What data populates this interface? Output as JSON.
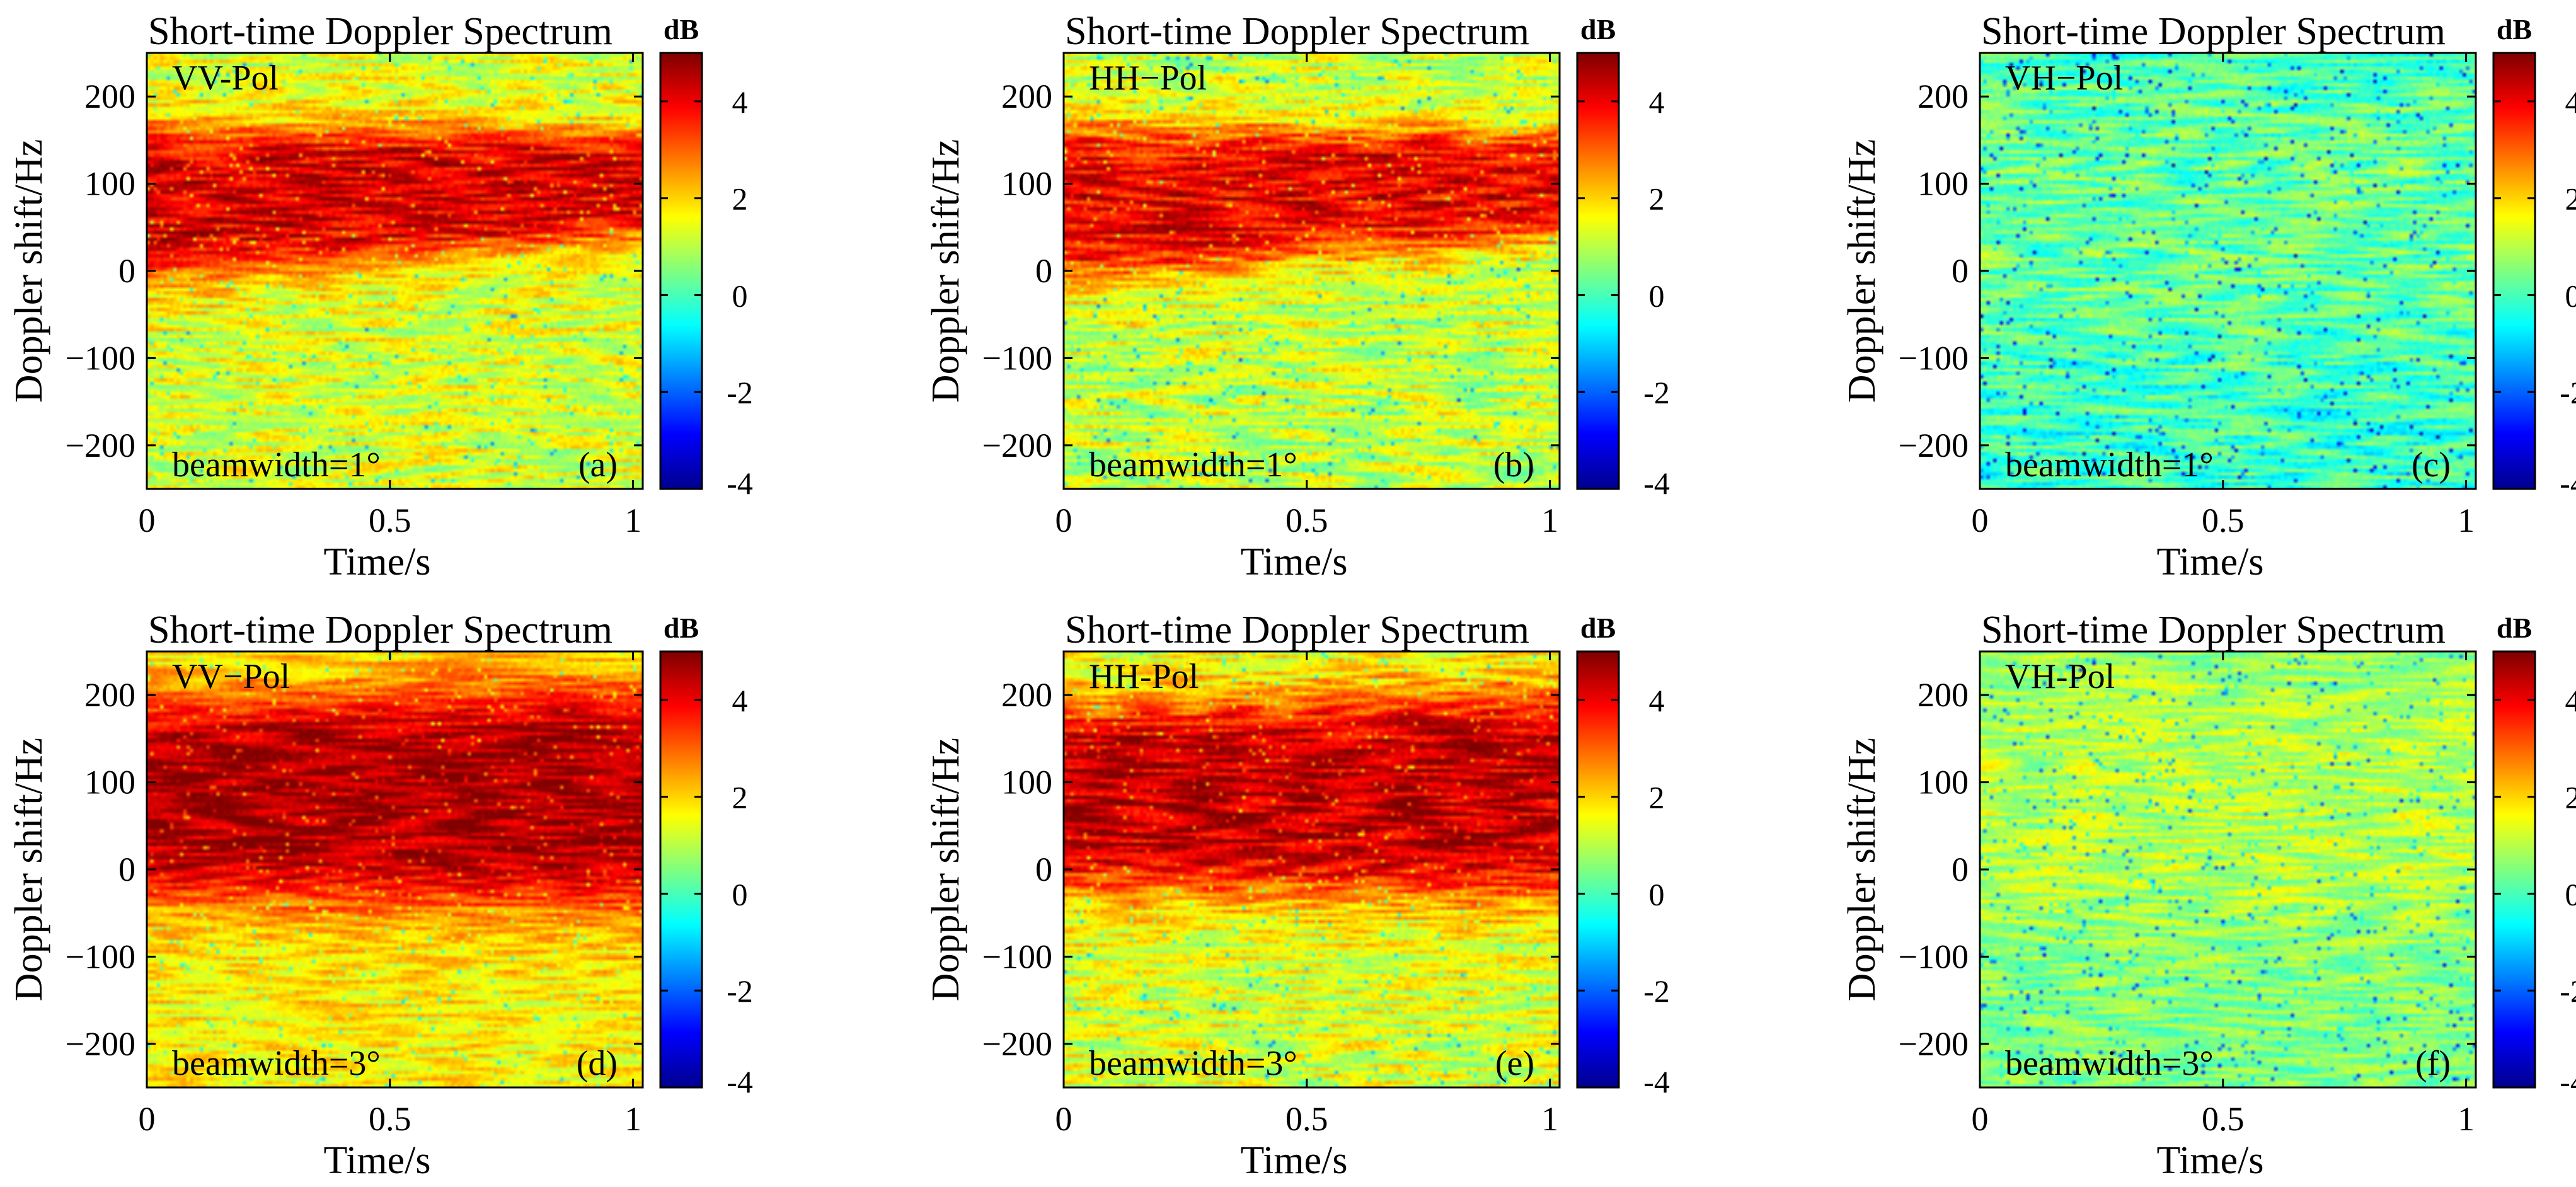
{
  "figure": {
    "colormap_name": "jet",
    "colormap": [
      "#00008f",
      "#0000ff",
      "#0080ff",
      "#00ffff",
      "#80ff80",
      "#ffff00",
      "#ff8000",
      "#ff0000",
      "#800000"
    ]
  },
  "chart_data": [
    {
      "type": "heatmap",
      "id": "a",
      "title": "Short-time Doppler Spectrum",
      "xlabel": "Time/s",
      "ylabel": "Doppler shift/Hz",
      "xlim": [
        0,
        1.02
      ],
      "ylim": [
        -250,
        250
      ],
      "xticks": [
        0,
        0.5,
        1
      ],
      "xtick_labels": [
        "0",
        "0.5",
        "1"
      ],
      "yticks": [
        200,
        100,
        0,
        -100,
        -200
      ],
      "ytick_labels": [
        "200",
        "100",
        "0",
        "−100",
        "−200"
      ],
      "colorbar": {
        "unit": "dB",
        "limits": [
          -4,
          5
        ],
        "ticks": [
          4,
          2,
          0,
          -2,
          -4
        ],
        "tick_labels": [
          "4",
          "2",
          "0",
          "-2",
          "-4"
        ]
      },
      "pol_label": "VV-Pol",
      "beam_label": "beamwidth=1°",
      "panel_label": "(a)",
      "spectrum": {
        "peak_dB": 4.2,
        "background_dB": 1.3,
        "hot_band_start": [
          -10,
          165
        ],
        "hot_band_end": [
          40,
          160
        ],
        "noise_dB": 0.9,
        "speckle_dB": 1.6,
        "seed": 11
      }
    },
    {
      "type": "heatmap",
      "id": "b",
      "title": "Short-time Doppler Spectrum",
      "xlabel": "Time/s",
      "ylabel": "Doppler shift/Hz",
      "xlim": [
        0,
        1.02
      ],
      "ylim": [
        -250,
        250
      ],
      "xticks": [
        0,
        0.5,
        1
      ],
      "xtick_labels": [
        "0",
        "0.5",
        "1"
      ],
      "yticks": [
        200,
        100,
        0,
        -100,
        -200
      ],
      "ytick_labels": [
        "200",
        "100",
        "0",
        "−100",
        "−200"
      ],
      "colorbar": {
        "unit": "dB",
        "limits": [
          -4,
          5
        ],
        "ticks": [
          4,
          2,
          0,
          -2,
          -4
        ],
        "tick_labels": [
          "4",
          "2",
          "0",
          "-2",
          "-4"
        ]
      },
      "pol_label": "HH−Pol",
      "beam_label": "beamwidth=1°",
      "panel_label": "(b)",
      "spectrum": {
        "peak_dB": 4.0,
        "background_dB": 1.1,
        "hot_band_start": [
          -10,
          165
        ],
        "hot_band_end": [
          40,
          160
        ],
        "noise_dB": 1.0,
        "speckle_dB": 1.7,
        "seed": 23
      }
    },
    {
      "type": "heatmap",
      "id": "c",
      "title": "Short-time Doppler Spectrum",
      "xlabel": "Time/s",
      "ylabel": "Doppler shift/Hz",
      "xlim": [
        0,
        1.02
      ],
      "ylim": [
        -250,
        250
      ],
      "xticks": [
        0,
        0.5,
        1
      ],
      "xtick_labels": [
        "0",
        "0.5",
        "1"
      ],
      "yticks": [
        200,
        100,
        0,
        -100,
        -200
      ],
      "ytick_labels": [
        "200",
        "100",
        "0",
        "−100",
        "−200"
      ],
      "colorbar": {
        "unit": "dB",
        "limits": [
          -4,
          5
        ],
        "ticks": [
          4,
          2,
          0,
          -2,
          -4
        ],
        "tick_labels": [
          "4",
          "2",
          "0",
          "-2",
          "-4"
        ]
      },
      "pol_label": "VH−Pol",
      "beam_label": "beamwidth=1°",
      "panel_label": "(c)",
      "spectrum": {
        "peak_dB": 0.3,
        "background_dB": -0.1,
        "hot_band_start": [
          -80,
          220
        ],
        "hot_band_end": [
          -80,
          220
        ],
        "noise_dB": 0.9,
        "speckle_dB": 2.2,
        "seed": 37
      }
    },
    {
      "type": "heatmap",
      "id": "d",
      "title": "Short-time Doppler Spectrum",
      "xlabel": "Time/s",
      "ylabel": "Doppler shift/Hz",
      "xlim": [
        0,
        1.02
      ],
      "ylim": [
        -250,
        250
      ],
      "xticks": [
        0,
        0.5,
        1
      ],
      "xtick_labels": [
        "0",
        "0.5",
        "1"
      ],
      "yticks": [
        200,
        100,
        0,
        -100,
        -200
      ],
      "ytick_labels": [
        "200",
        "100",
        "0",
        "−100",
        "−200"
      ],
      "colorbar": {
        "unit": "dB",
        "limits": [
          -4,
          5
        ],
        "ticks": [
          4,
          2,
          0,
          -2,
          -4
        ],
        "tick_labels": [
          "4",
          "2",
          "0",
          "-2",
          "-4"
        ]
      },
      "pol_label": "VV−Pol",
      "beam_label": "beamwidth=3°",
      "panel_label": "(d)",
      "spectrum": {
        "peak_dB": 4.6,
        "background_dB": 1.7,
        "hot_band_start": [
          -30,
          190
        ],
        "hot_band_end": [
          -40,
          210
        ],
        "noise_dB": 0.8,
        "speckle_dB": 1.4,
        "seed": 53
      }
    },
    {
      "type": "heatmap",
      "id": "e",
      "title": "Short-time Doppler Spectrum",
      "xlabel": "Time/s",
      "ylabel": "Doppler shift/Hz",
      "xlim": [
        0,
        1.02
      ],
      "ylim": [
        -250,
        250
      ],
      "xticks": [
        0,
        0.5,
        1
      ],
      "xtick_labels": [
        "0",
        "0.5",
        "1"
      ],
      "yticks": [
        200,
        100,
        0,
        -100,
        -200
      ],
      "ytick_labels": [
        "200",
        "100",
        "0",
        "−100",
        "−200"
      ],
      "colorbar": {
        "unit": "dB",
        "limits": [
          -4,
          5
        ],
        "ticks": [
          4,
          2,
          0,
          -2,
          -4
        ],
        "tick_labels": [
          "4",
          "2",
          "0",
          "-2",
          "-4"
        ]
      },
      "pol_label": "HH-Pol",
      "beam_label": "beamwidth=3°",
      "panel_label": "(e)",
      "spectrum": {
        "peak_dB": 4.4,
        "background_dB": 1.3,
        "hot_band_start": [
          -20,
          185
        ],
        "hot_band_end": [
          -30,
          205
        ],
        "noise_dB": 0.9,
        "speckle_dB": 1.5,
        "seed": 71
      }
    },
    {
      "type": "heatmap",
      "id": "f",
      "title": "Short-time Doppler Spectrum",
      "xlabel": "Time/s",
      "ylabel": "Doppler shift/Hz",
      "xlim": [
        0,
        1.02
      ],
      "ylim": [
        -250,
        250
      ],
      "xticks": [
        0,
        0.5,
        1
      ],
      "xtick_labels": [
        "0",
        "0.5",
        "1"
      ],
      "yticks": [
        200,
        100,
        0,
        -100,
        -200
      ],
      "ytick_labels": [
        "200",
        "100",
        "0",
        "−100",
        "−200"
      ],
      "colorbar": {
        "unit": "dB",
        "limits": [
          -4,
          5
        ],
        "ticks": [
          4,
          2,
          0,
          -2,
          -4
        ],
        "tick_labels": [
          "4",
          "2",
          "0",
          "-2",
          "-4"
        ]
      },
      "pol_label": "VH-Pol",
      "beam_label": "beamwidth=3°",
      "panel_label": "(f)",
      "spectrum": {
        "peak_dB": 1.0,
        "background_dB": 0.5,
        "hot_band_start": [
          -60,
          230
        ],
        "hot_band_end": [
          -60,
          230
        ],
        "noise_dB": 0.8,
        "speckle_dB": 2.0,
        "seed": 89
      }
    }
  ]
}
